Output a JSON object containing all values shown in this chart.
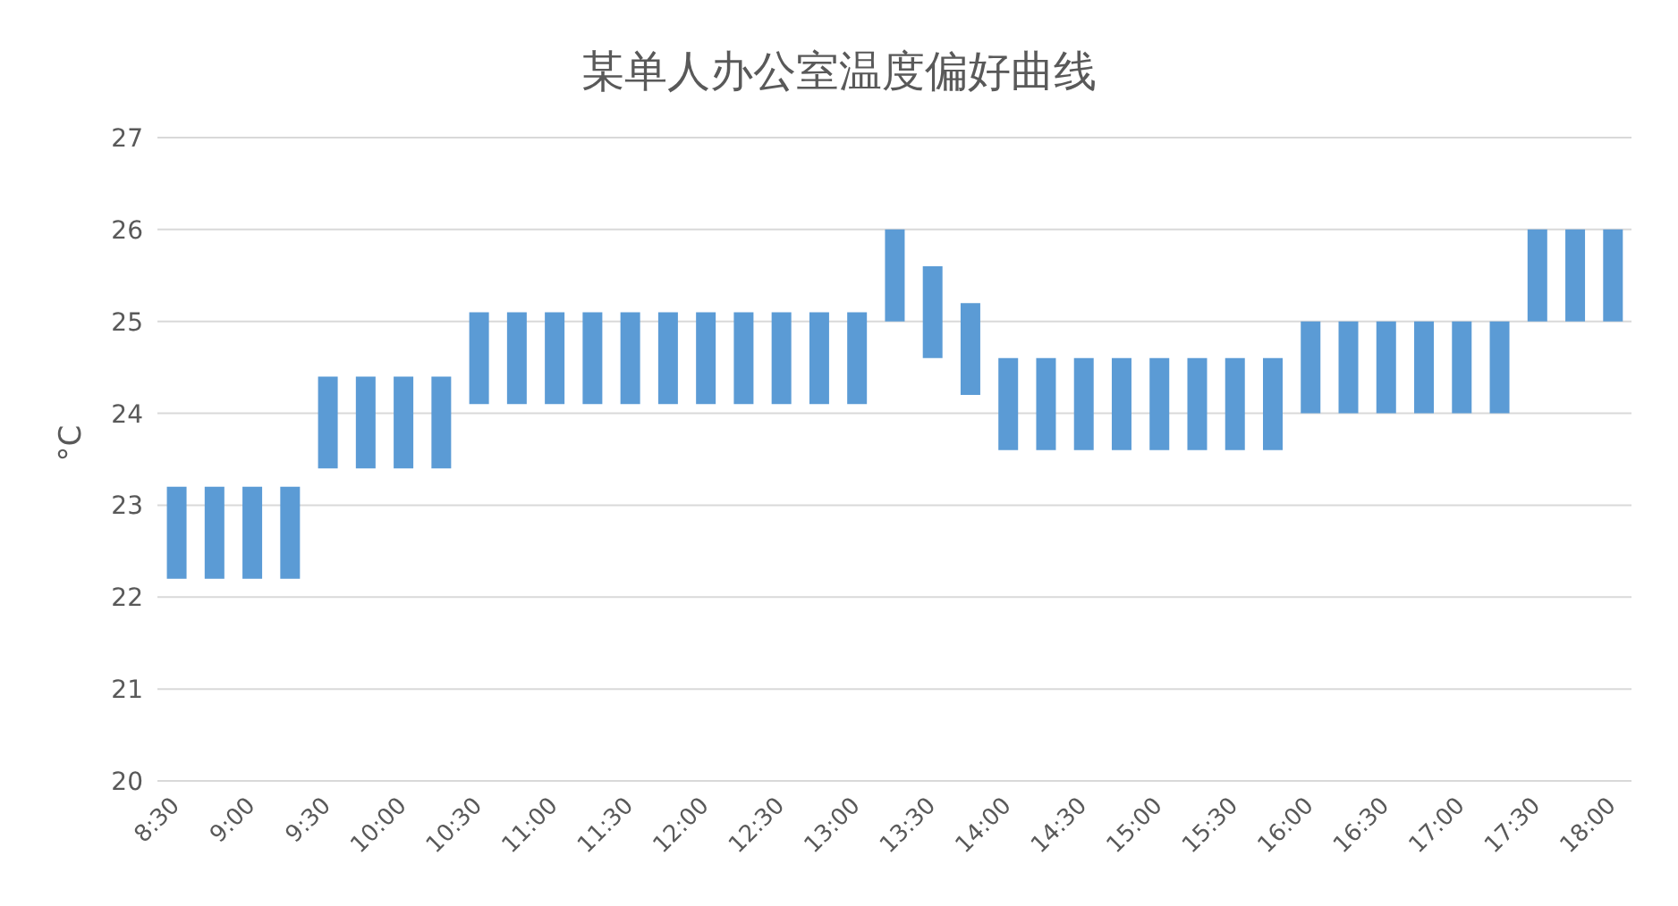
{
  "chart_data": {
    "type": "bar",
    "title": "某单人办公室温度偏好曲线",
    "ylabel": "°C",
    "categories": [
      "8:30",
      null,
      "9:00",
      null,
      "9:30",
      null,
      "10:00",
      null,
      "10:30",
      null,
      "11:00",
      null,
      "11:30",
      null,
      "12:00",
      null,
      "12:30",
      null,
      "13:00",
      null,
      "13:30",
      null,
      "14:00",
      null,
      "14:30",
      null,
      "15:00",
      null,
      "15:30",
      null,
      "16:00",
      null,
      "16:30",
      null,
      "17:00",
      null,
      "17:30",
      null,
      "18:00"
    ],
    "values": [
      1,
      1,
      1,
      1,
      1,
      1,
      1,
      1,
      1,
      1,
      1,
      1,
      1,
      1,
      1,
      1,
      1,
      1,
      1,
      1,
      1,
      1,
      1,
      1,
      1,
      1,
      1,
      1,
      1,
      1,
      1,
      1,
      1,
      1,
      1,
      1,
      1,
      1,
      1
    ],
    "base": [
      22.2,
      22.2,
      22.2,
      22.2,
      23.4,
      23.4,
      23.4,
      23.4,
      24.1,
      24.1,
      24.1,
      24.1,
      24.1,
      24.1,
      24.1,
      24.1,
      24.1,
      24.1,
      24.1,
      25,
      24.6,
      24.2,
      23.6,
      23.6,
      23.6,
      23.6,
      23.6,
      23.6,
      23.6,
      23.6,
      24,
      24,
      24,
      24,
      24,
      24,
      25,
      25,
      25
    ],
    "color": "#5b9bd5",
    "ylim": [
      20,
      27
    ],
    "yticks": [
      20,
      21,
      22,
      23,
      24,
      25,
      26,
      27
    ],
    "grid": "y"
  }
}
